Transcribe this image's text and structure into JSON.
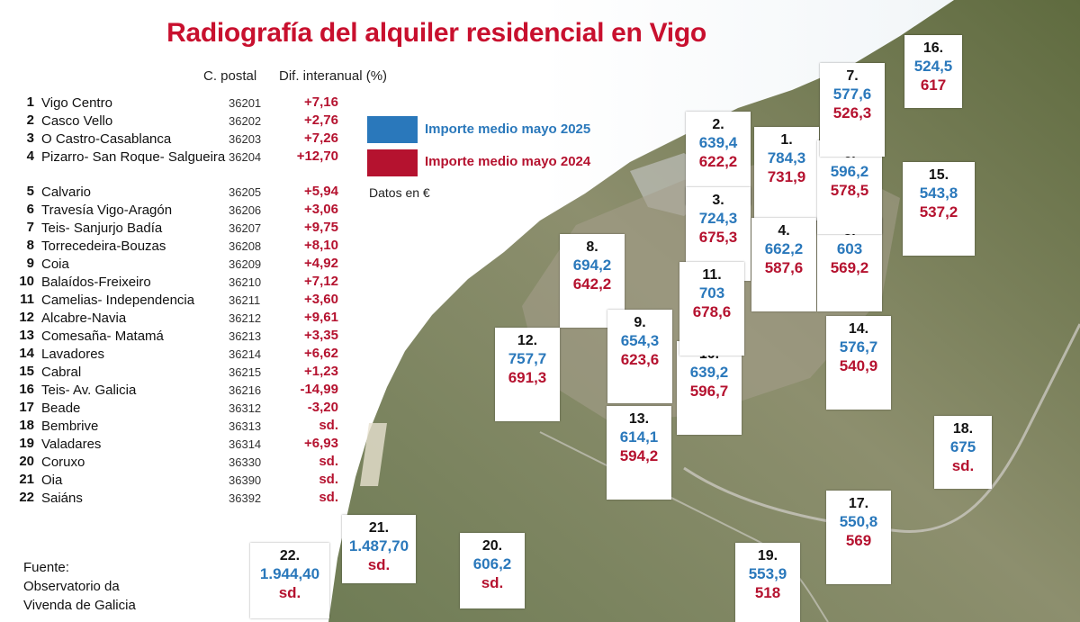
{
  "title": "Radiografía del alquiler residencial en Vigo",
  "columns": {
    "postal": "C. postal",
    "diff": "Dif. interanual (%)"
  },
  "legend": {
    "label_2025": "Importe medio mayo 2025",
    "label_2024": "Importe medio mayo 2024",
    "color_2025": "#2a78bb",
    "color_2024": "#b5122f",
    "unit": "Datos en €"
  },
  "source": {
    "line1": "Fuente:",
    "line2": "Observatorio da",
    "line3": "Vivenda de Galicia"
  },
  "districts": [
    {
      "num": "1",
      "name": "Vigo Centro",
      "cp": "36201",
      "diff": "+7,16",
      "box_num": "1.",
      "v2025": "784,3",
      "v2024": "731,9"
    },
    {
      "num": "2",
      "name": "Casco Vello",
      "cp": "36202",
      "diff": "+2,76",
      "box_num": "2.",
      "v2025": "639,4",
      "v2024": "622,2"
    },
    {
      "num": "3",
      "name": "O Castro-Casablanca",
      "cp": "36203",
      "diff": "+7,26",
      "box_num": "3.",
      "v2025": "724,3",
      "v2024": "675,3"
    },
    {
      "num": "4",
      "name": "Pizarro- San Roque- Salgueira",
      "cp": "36204",
      "diff": "+12,70",
      "box_num": "4.",
      "v2025": "662,2",
      "v2024": "587,6"
    },
    {
      "num": "5",
      "name": "Calvario",
      "cp": "36205",
      "diff": "+5,94",
      "box_num": "5.",
      "v2025": "603",
      "v2024": "569,2"
    },
    {
      "num": "6",
      "name": "Travesía Vigo-Aragón",
      "cp": "36206",
      "diff": "+3,06",
      "box_num": "6.",
      "v2025": "596,2",
      "v2024": "578,5"
    },
    {
      "num": "7",
      "name": "Teis- Sanjurjo Badía",
      "cp": "36207",
      "diff": "+9,75",
      "box_num": "7.",
      "v2025": "577,6",
      "v2024": "526,3"
    },
    {
      "num": "8",
      "name": "Torrecedeira-Bouzas",
      "cp": "36208",
      "diff": "+8,10",
      "box_num": "8.",
      "v2025": "694,2",
      "v2024": "642,2"
    },
    {
      "num": "9",
      "name": "Coia",
      "cp": "36209",
      "diff": "+4,92",
      "box_num": "9.",
      "v2025": "654,3",
      "v2024": "623,6"
    },
    {
      "num": "10",
      "name": "Balaídos-Freixeiro",
      "cp": "36210",
      "diff": "+7,12",
      "box_num": "10.",
      "v2025": "639,2",
      "v2024": "596,7"
    },
    {
      "num": "11",
      "name": "Camelias- Independencia",
      "cp": "36211",
      "diff": "+3,60",
      "box_num": "11.",
      "v2025": "703",
      "v2024": "678,6"
    },
    {
      "num": "12",
      "name": "Alcabre-Navia",
      "cp": "36212",
      "diff": "+9,61",
      "box_num": "12.",
      "v2025": "757,7",
      "v2024": "691,3"
    },
    {
      "num": "13",
      "name": "Comesaña- Matamá",
      "cp": "36213",
      "diff": "+3,35",
      "box_num": "13.",
      "v2025": "614,1",
      "v2024": "594,2"
    },
    {
      "num": "14",
      "name": "Lavadores",
      "cp": "36214",
      "diff": "+6,62",
      "box_num": "14.",
      "v2025": "576,7",
      "v2024": "540,9"
    },
    {
      "num": "15",
      "name": "Cabral",
      "cp": "36215",
      "diff": "+1,23",
      "box_num": "15.",
      "v2025": "543,8",
      "v2024": "537,2"
    },
    {
      "num": "16",
      "name": "Teis- Av. Galicia",
      "cp": "36216",
      "diff": "-14,99",
      "box_num": "16.",
      "v2025": "524,5",
      "v2024": "617"
    },
    {
      "num": "17",
      "name": "Beade",
      "cp": "36312",
      "diff": "-3,20",
      "box_num": "17.",
      "v2025": "550,8",
      "v2024": "569"
    },
    {
      "num": "18",
      "name": "Bembrive",
      "cp": "36313",
      "diff": "sd.",
      "box_num": "18.",
      "v2025": "675",
      "v2024": "sd."
    },
    {
      "num": "19",
      "name": "Valadares",
      "cp": "36314",
      "diff": "+6,93",
      "box_num": "19.",
      "v2025": "553,9",
      "v2024": "518"
    },
    {
      "num": "20",
      "name": "Coruxo",
      "cp": "36330",
      "diff": "sd.",
      "box_num": "20.",
      "v2025": "606,2",
      "v2024": "sd."
    },
    {
      "num": "21",
      "name": "Oia",
      "cp": "36390",
      "diff": "sd.",
      "box_num": "21.",
      "v2025": "1.487,70",
      "v2024": "sd."
    },
    {
      "num": "22",
      "name": "Saiáns",
      "cp": "36392",
      "diff": "sd.",
      "box_num": "22.",
      "v2025": "1.944,40",
      "v2024": "sd."
    }
  ]
}
